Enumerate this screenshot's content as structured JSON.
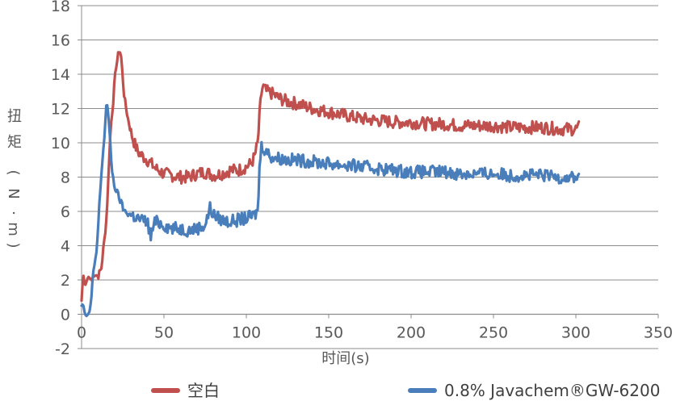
{
  "chart_data": {
    "type": "line",
    "xlabel": "时间(s)",
    "ylabel": "扭矩（N·m）",
    "ylabel_chars": [
      "扭",
      "矩",
      "(",
      "N",
      "·",
      "m",
      ")"
    ],
    "xlim": [
      0,
      350
    ],
    "ylim": [
      -2,
      18
    ],
    "xticks": [
      0,
      50,
      100,
      150,
      200,
      250,
      300,
      350
    ],
    "yticks": [
      -2,
      0,
      2,
      4,
      6,
      8,
      10,
      12,
      14,
      16,
      18
    ],
    "xtick_labels": [
      "0",
      "50",
      "100",
      "150",
      "200",
      "250",
      "300",
      "350"
    ],
    "ytick_labels": [
      "-2",
      "0",
      "2",
      "4",
      "6",
      "8",
      "10",
      "12",
      "14",
      "16",
      "18"
    ],
    "grid": "horizontal",
    "legend_position": "bottom",
    "series": [
      {
        "name": "空白",
        "color": "#c0504d",
        "x": [
          0,
          1,
          2,
          4,
          6,
          8,
          10,
          12,
          14,
          15,
          16,
          17,
          18,
          19,
          20,
          21,
          22,
          23,
          24,
          25,
          26,
          28,
          30,
          32,
          34,
          36,
          40,
          45,
          50,
          55,
          60,
          65,
          70,
          75,
          80,
          85,
          90,
          95,
          100,
          103,
          105,
          107,
          108,
          109,
          110,
          112,
          115,
          120,
          125,
          130,
          140,
          150,
          160,
          170,
          180,
          190,
          200,
          210,
          220,
          230,
          240,
          250,
          260,
          270,
          280,
          290,
          300,
          302
        ],
        "y": [
          0.8,
          2.4,
          1.6,
          2.2,
          2.0,
          2.4,
          2.2,
          2.7,
          4.5,
          5.5,
          7.2,
          9.8,
          11.2,
          12.2,
          13.5,
          14.5,
          15.0,
          15.5,
          15.0,
          13.8,
          12.6,
          11.5,
          10.6,
          10.0,
          9.5,
          9.3,
          9.0,
          8.5,
          8.2,
          8.1,
          8.0,
          8.0,
          8.2,
          8.3,
          8.1,
          8.2,
          8.4,
          8.4,
          8.6,
          8.8,
          9.2,
          10.0,
          11.5,
          12.8,
          13.3,
          13.0,
          12.9,
          12.6,
          12.4,
          12.3,
          12.0,
          11.8,
          11.6,
          11.4,
          11.3,
          11.2,
          11.2,
          11.1,
          11.1,
          11.0,
          11.0,
          11.0,
          10.9,
          10.9,
          10.9,
          10.8,
          10.8,
          10.9
        ]
      },
      {
        "name": "0.8% Javachem®GW-6200",
        "color": "#4a7ebb",
        "x": [
          0,
          1,
          2,
          3,
          4,
          5,
          6,
          7,
          8,
          9,
          10,
          11,
          12,
          13,
          14,
          15,
          16,
          17,
          18,
          19,
          20,
          21,
          22,
          24,
          26,
          28,
          30,
          32,
          34,
          36,
          40,
          42,
          44,
          46,
          50,
          55,
          60,
          65,
          70,
          75,
          78,
          80,
          85,
          90,
          95,
          100,
          103,
          105,
          107,
          108,
          109,
          110,
          112,
          115,
          120,
          125,
          130,
          140,
          150,
          160,
          170,
          180,
          190,
          200,
          210,
          220,
          230,
          240,
          250,
          260,
          270,
          280,
          290,
          300,
          302
        ],
        "y": [
          0.5,
          0.6,
          0.0,
          -0.1,
          0.0,
          0.2,
          1.0,
          2.5,
          2.8,
          3.5,
          5.0,
          6.8,
          8.0,
          9.5,
          10.5,
          12.3,
          12.0,
          10.5,
          9.0,
          8.0,
          7.5,
          7.2,
          7.0,
          6.5,
          6.0,
          5.9,
          5.8,
          5.7,
          5.6,
          5.5,
          5.4,
          4.5,
          5.3,
          5.4,
          5.2,
          5.0,
          5.0,
          4.9,
          5.0,
          5.2,
          6.2,
          5.8,
          5.5,
          5.4,
          5.5,
          5.6,
          5.7,
          5.8,
          6.0,
          8.5,
          9.8,
          9.8,
          9.5,
          9.2,
          9.1,
          9.0,
          9.0,
          8.9,
          8.8,
          8.7,
          8.6,
          8.5,
          8.4,
          8.3,
          8.3,
          8.3,
          8.2,
          8.2,
          8.2,
          8.1,
          8.1,
          8.1,
          8.0,
          8.0,
          8.0
        ]
      }
    ]
  }
}
